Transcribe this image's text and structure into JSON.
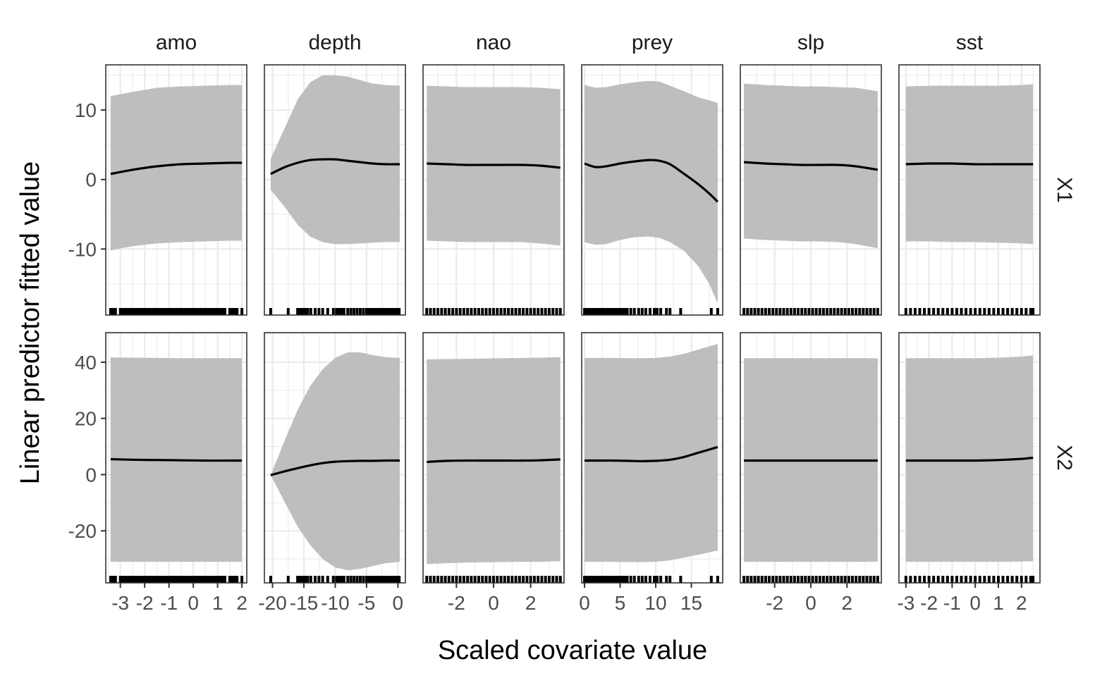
{
  "chart_data": {
    "type": "line",
    "xlabel": "Scaled covariate value",
    "ylabel": "Linear predictor fitted value",
    "columns": [
      "amo",
      "depth",
      "nao",
      "prey",
      "slp",
      "sst"
    ],
    "rows": [
      "X1",
      "X2"
    ],
    "colors": {
      "ribbon": "#bebebe",
      "line": "#000000",
      "grid": "#ebebeb",
      "border": "#333333",
      "text": "#4d4d4d"
    },
    "x_axes": {
      "amo": {
        "xlim": [
          -3.6,
          2.2
        ],
        "ticks": [
          -3,
          -2,
          -1,
          0,
          1,
          2
        ],
        "tick_labels": [
          "-3",
          "-2",
          "-1",
          "0",
          "1",
          "2"
        ]
      },
      "depth": {
        "xlim": [
          -21.3,
          1.2
        ],
        "ticks": [
          -20,
          -15,
          -10,
          -5,
          0
        ],
        "tick_labels": [
          "-20",
          "-15",
          "-10",
          "-5",
          "0"
        ]
      },
      "nao": {
        "xlim": [
          -3.8,
          3.8
        ],
        "ticks": [
          -2,
          0,
          2
        ],
        "tick_labels": [
          "-2",
          "0",
          "2"
        ]
      },
      "prey": {
        "xlim": [
          -0.4,
          19.4
        ],
        "ticks": [
          0,
          5,
          10,
          15
        ],
        "tick_labels": [
          "0",
          "5",
          "10",
          "15"
        ]
      },
      "slp": {
        "xlim": [
          -3.9,
          3.9
        ],
        "ticks": [
          -2,
          0,
          2
        ],
        "tick_labels": [
          "-2",
          "0",
          "2"
        ]
      },
      "sst": {
        "xlim": [
          -3.3,
          2.8
        ],
        "ticks": [
          -3,
          -2,
          -1,
          0,
          1,
          2
        ],
        "tick_labels": [
          "-3",
          "-2",
          "-1",
          "0",
          "1",
          "2"
        ]
      }
    },
    "y_axes": {
      "X1": {
        "ylim": [
          -19.5,
          16.5
        ],
        "ticks": [
          -10,
          0,
          10
        ],
        "tick_labels": [
          "-10",
          "0",
          "10"
        ]
      },
      "X2": {
        "ylim": [
          -38.5,
          50.5
        ],
        "ticks": [
          -20,
          0,
          20,
          40
        ],
        "tick_labels": [
          "-20",
          "0",
          "20",
          "40"
        ]
      }
    },
    "panels": [
      {
        "row": "X1",
        "col": "amo",
        "x": [
          -3.4,
          -2.5,
          -1.5,
          -0.5,
          0.5,
          1.5,
          2.0
        ],
        "fit": [
          0.8,
          1.4,
          1.9,
          2.2,
          2.3,
          2.4,
          2.4
        ],
        "lower": [
          -10.2,
          -9.6,
          -9.2,
          -9.0,
          -8.9,
          -8.8,
          -8.8
        ],
        "upper": [
          12.0,
          12.6,
          13.2,
          13.4,
          13.5,
          13.6,
          13.6
        ],
        "rug": [
          -3.4,
          -3.3,
          -3.2,
          -3.0,
          -2.9,
          -2.8,
          -2.7,
          -2.6,
          -2.5,
          -2.4,
          -2.3,
          -2.2,
          -2.1,
          -2.0,
          -1.9,
          -1.8,
          -1.7,
          -1.6,
          -1.5,
          -1.4,
          -1.3,
          -1.2,
          -1.1,
          -1.0,
          -0.9,
          -0.8,
          -0.7,
          -0.6,
          -0.5,
          -0.4,
          -0.3,
          -0.2,
          -0.1,
          0.0,
          0.1,
          0.2,
          0.3,
          0.4,
          0.5,
          0.6,
          0.7,
          0.8,
          0.9,
          1.0,
          1.1,
          1.2,
          1.3,
          1.5,
          1.6,
          1.7,
          1.8,
          2.0
        ]
      },
      {
        "row": "X1",
        "col": "depth",
        "x": [
          -20.3,
          -18,
          -16,
          -14,
          -12,
          -10,
          -8,
          -6,
          -4,
          -2,
          0.3
        ],
        "fit": [
          0.8,
          1.8,
          2.4,
          2.8,
          2.9,
          2.9,
          2.7,
          2.5,
          2.3,
          2.2,
          2.2
        ],
        "lower": [
          -1.5,
          -4.0,
          -6.5,
          -8.2,
          -9.0,
          -9.3,
          -9.3,
          -9.2,
          -9.1,
          -9.0,
          -9.0
        ],
        "upper": [
          3.0,
          7.5,
          11.5,
          14.0,
          15.0,
          15.0,
          14.8,
          14.3,
          13.8,
          13.6,
          13.5
        ],
        "rug": [
          -20.3,
          -17.5,
          -16.0,
          -15.6,
          -15.2,
          -14.8,
          -14.4,
          -13.9,
          -13.2,
          -12.6,
          -12.0,
          -11.2,
          -10.3,
          -9.8,
          -9.4,
          -9.0,
          -8.6,
          -8.0,
          -7.5,
          -7.0,
          -6.5,
          -6.0,
          -5.5,
          -5.0,
          -4.6,
          -4.2,
          -3.8,
          -3.4,
          -3.0,
          -2.6,
          -2.2,
          -1.8,
          -1.4,
          -1.0,
          -0.6,
          -0.2,
          0.2
        ]
      },
      {
        "row": "X1",
        "col": "nao",
        "x": [
          -3.6,
          -2.5,
          -1.5,
          -0.5,
          0.5,
          1.5,
          2.5,
          3.6
        ],
        "fit": [
          2.3,
          2.2,
          2.1,
          2.1,
          2.1,
          2.1,
          2.0,
          1.7
        ],
        "lower": [
          -8.8,
          -8.9,
          -9.0,
          -9.0,
          -9.0,
          -9.0,
          -9.2,
          -9.5
        ],
        "upper": [
          13.5,
          13.4,
          13.3,
          13.3,
          13.3,
          13.3,
          13.2,
          13.0
        ],
        "rug": [
          -3.6,
          -3.4,
          -3.2,
          -3.0,
          -2.8,
          -2.6,
          -2.4,
          -2.2,
          -2.0,
          -1.8,
          -1.6,
          -1.4,
          -1.2,
          -1.0,
          -0.8,
          -0.6,
          -0.4,
          -0.2,
          0.0,
          0.2,
          0.4,
          0.6,
          0.8,
          1.0,
          1.2,
          1.4,
          1.6,
          1.8,
          2.0,
          2.2,
          2.4,
          2.6,
          2.8,
          3.0,
          3.2,
          3.4,
          3.6
        ]
      },
      {
        "row": "X1",
        "col": "prey",
        "x": [
          0,
          1.5,
          3,
          5,
          7,
          9,
          10.5,
          12,
          14,
          16,
          17.5,
          18.7
        ],
        "fit": [
          2.3,
          1.8,
          1.9,
          2.3,
          2.6,
          2.8,
          2.7,
          2.2,
          0.8,
          -0.7,
          -2.0,
          -3.2
        ],
        "lower": [
          -9.0,
          -9.4,
          -9.3,
          -8.7,
          -8.3,
          -8.2,
          -8.4,
          -9.0,
          -10.3,
          -12.5,
          -15.0,
          -17.8
        ],
        "upper": [
          13.6,
          13.2,
          13.3,
          13.7,
          14.0,
          14.2,
          14.1,
          13.5,
          12.7,
          11.8,
          11.4,
          11.0
        ],
        "rug": [
          0.0,
          0.3,
          0.6,
          0.9,
          1.2,
          1.5,
          1.8,
          2.1,
          2.4,
          2.7,
          3.0,
          3.3,
          3.6,
          3.9,
          4.2,
          4.5,
          4.8,
          5.1,
          5.4,
          5.7,
          6.0,
          6.5,
          7.0,
          7.6,
          8.1,
          8.6,
          9.2,
          9.8,
          10.2,
          10.7,
          11.5,
          12.0,
          13.5,
          17.8,
          18.7
        ]
      },
      {
        "row": "X1",
        "col": "slp",
        "x": [
          -3.7,
          -2.5,
          -1.5,
          -0.5,
          0.5,
          1.5,
          2.5,
          3.7
        ],
        "fit": [
          2.5,
          2.3,
          2.2,
          2.1,
          2.1,
          2.1,
          1.9,
          1.4
        ],
        "lower": [
          -8.5,
          -8.7,
          -8.8,
          -8.9,
          -8.9,
          -9.0,
          -9.3,
          -9.9
        ],
        "upper": [
          13.8,
          13.6,
          13.5,
          13.4,
          13.4,
          13.3,
          13.2,
          12.7
        ],
        "rug": [
          -3.7,
          -3.5,
          -3.3,
          -3.1,
          -2.9,
          -2.7,
          -2.5,
          -2.3,
          -2.1,
          -1.9,
          -1.7,
          -1.5,
          -1.3,
          -1.1,
          -0.9,
          -0.7,
          -0.5,
          -0.3,
          -0.1,
          0.1,
          0.3,
          0.5,
          0.7,
          0.9,
          1.1,
          1.3,
          1.5,
          1.7,
          1.9,
          2.1,
          2.3,
          2.5,
          2.7,
          2.9,
          3.1,
          3.3,
          3.5,
          3.7
        ]
      },
      {
        "row": "X1",
        "col": "sst",
        "x": [
          -3.0,
          -2.0,
          -1.0,
          0.0,
          1.0,
          2.0,
          2.5
        ],
        "fit": [
          2.2,
          2.3,
          2.3,
          2.2,
          2.2,
          2.2,
          2.2
        ],
        "lower": [
          -8.9,
          -8.9,
          -9.0,
          -9.0,
          -9.1,
          -9.2,
          -9.3
        ],
        "upper": [
          13.4,
          13.5,
          13.5,
          13.5,
          13.5,
          13.6,
          13.7
        ],
        "rug": [
          -3.0,
          -2.8,
          -2.6,
          -2.4,
          -2.2,
          -2.0,
          -1.8,
          -1.6,
          -1.4,
          -1.2,
          -1.0,
          -0.8,
          -0.6,
          -0.4,
          -0.2,
          0.0,
          0.2,
          0.4,
          0.6,
          0.8,
          1.0,
          1.2,
          1.4,
          1.6,
          1.8,
          2.0,
          2.2,
          2.4,
          2.5
        ]
      },
      {
        "row": "X2",
        "col": "amo",
        "x": [
          -3.4,
          -2.5,
          -1.5,
          -0.5,
          0.5,
          1.5,
          2.0
        ],
        "fit": [
          5.5,
          5.3,
          5.2,
          5.1,
          5.0,
          5.0,
          5.0
        ],
        "lower": [
          -31.0,
          -31.0,
          -31.0,
          -31.0,
          -31.0,
          -31.0,
          -31.0
        ],
        "upper": [
          41.7,
          41.6,
          41.5,
          41.4,
          41.4,
          41.4,
          41.4
        ],
        "rug": [
          -3.4,
          -3.3,
          -3.2,
          -3.0,
          -2.9,
          -2.8,
          -2.7,
          -2.6,
          -2.5,
          -2.4,
          -2.3,
          -2.2,
          -2.1,
          -2.0,
          -1.9,
          -1.8,
          -1.7,
          -1.6,
          -1.5,
          -1.4,
          -1.3,
          -1.2,
          -1.1,
          -1.0,
          -0.9,
          -0.8,
          -0.7,
          -0.6,
          -0.5,
          -0.4,
          -0.3,
          -0.2,
          -0.1,
          0.0,
          0.1,
          0.2,
          0.3,
          0.4,
          0.5,
          0.6,
          0.7,
          0.8,
          0.9,
          1.0,
          1.1,
          1.2,
          1.3,
          1.5,
          1.6,
          1.7,
          1.8,
          2.0
        ]
      },
      {
        "row": "X2",
        "col": "depth",
        "x": [
          -20.3,
          -18,
          -16,
          -14,
          -12,
          -10,
          -8,
          -6,
          -4,
          -2,
          0.3
        ],
        "fit": [
          -0.2,
          1.2,
          2.3,
          3.3,
          4.1,
          4.6,
          4.8,
          4.9,
          4.9,
          5.0,
          5.0
        ],
        "lower": [
          -0.2,
          -10.0,
          -18.5,
          -25.0,
          -30.0,
          -33.0,
          -34.0,
          -33.5,
          -32.5,
          -31.5,
          -31.0
        ],
        "upper": [
          -0.2,
          12.5,
          23.0,
          31.5,
          37.5,
          41.5,
          43.5,
          43.5,
          42.5,
          41.8,
          41.5
        ],
        "rug": [
          -20.3,
          -17.5,
          -16.0,
          -15.6,
          -15.2,
          -14.8,
          -14.4,
          -13.9,
          -13.2,
          -12.6,
          -12.0,
          -11.2,
          -10.3,
          -9.8,
          -9.4,
          -9.0,
          -8.6,
          -8.0,
          -7.5,
          -7.0,
          -6.5,
          -6.0,
          -5.5,
          -5.0,
          -4.6,
          -4.2,
          -3.8,
          -3.4,
          -3.0,
          -2.6,
          -2.2,
          -1.8,
          -1.4,
          -1.0,
          -0.6,
          -0.2,
          0.2
        ]
      },
      {
        "row": "X2",
        "col": "nao",
        "x": [
          -3.6,
          -2.5,
          -1.5,
          -0.5,
          0.5,
          1.5,
          2.5,
          3.6
        ],
        "fit": [
          4.5,
          4.9,
          5.0,
          5.0,
          5.0,
          5.0,
          5.1,
          5.4
        ],
        "lower": [
          -31.8,
          -31.5,
          -31.3,
          -31.2,
          -31.1,
          -31.0,
          -31.0,
          -30.8
        ],
        "upper": [
          41.0,
          41.1,
          41.2,
          41.3,
          41.4,
          41.5,
          41.6,
          41.8
        ],
        "rug": [
          -3.6,
          -3.4,
          -3.2,
          -3.0,
          -2.8,
          -2.6,
          -2.4,
          -2.2,
          -2.0,
          -1.8,
          -1.6,
          -1.4,
          -1.2,
          -1.0,
          -0.8,
          -0.6,
          -0.4,
          -0.2,
          0.0,
          0.2,
          0.4,
          0.6,
          0.8,
          1.0,
          1.2,
          1.4,
          1.6,
          1.8,
          2.0,
          2.2,
          2.4,
          2.6,
          2.8,
          3.0,
          3.2,
          3.4,
          3.6
        ]
      },
      {
        "row": "X2",
        "col": "prey",
        "x": [
          0,
          2,
          4,
          6,
          8,
          10,
          12,
          14,
          16,
          18.7
        ],
        "fit": [
          5.0,
          5.0,
          5.0,
          4.9,
          4.8,
          4.9,
          5.3,
          6.3,
          7.8,
          9.8
        ],
        "lower": [
          -31.0,
          -31.0,
          -31.0,
          -31.1,
          -31.1,
          -31.0,
          -30.5,
          -29.5,
          -28.5,
          -27.0
        ],
        "upper": [
          41.5,
          41.5,
          41.5,
          41.4,
          41.4,
          41.5,
          42.0,
          43.0,
          44.5,
          46.5
        ],
        "rug": [
          0.0,
          0.3,
          0.6,
          0.9,
          1.2,
          1.5,
          1.8,
          2.1,
          2.4,
          2.7,
          3.0,
          3.3,
          3.6,
          3.9,
          4.2,
          4.5,
          4.8,
          5.1,
          5.4,
          5.7,
          6.0,
          6.5,
          7.0,
          7.6,
          8.1,
          8.6,
          9.2,
          9.8,
          10.2,
          10.7,
          11.5,
          12.0,
          13.5,
          17.8,
          18.7
        ]
      },
      {
        "row": "X2",
        "col": "slp",
        "x": [
          -3.7,
          -2.5,
          -1.5,
          -0.5,
          0.5,
          1.5,
          2.5,
          3.7
        ],
        "fit": [
          5.0,
          5.0,
          5.0,
          5.0,
          5.0,
          5.0,
          5.0,
          5.0
        ],
        "lower": [
          -31.0,
          -31.0,
          -31.0,
          -31.0,
          -31.0,
          -31.0,
          -31.0,
          -31.0
        ],
        "upper": [
          41.4,
          41.4,
          41.4,
          41.4,
          41.4,
          41.4,
          41.4,
          41.4
        ],
        "rug": [
          -3.7,
          -3.5,
          -3.3,
          -3.1,
          -2.9,
          -2.7,
          -2.5,
          -2.3,
          -2.1,
          -1.9,
          -1.7,
          -1.5,
          -1.3,
          -1.1,
          -0.9,
          -0.7,
          -0.5,
          -0.3,
          -0.1,
          0.1,
          0.3,
          0.5,
          0.7,
          0.9,
          1.1,
          1.3,
          1.5,
          1.7,
          1.9,
          2.1,
          2.3,
          2.5,
          2.7,
          2.9,
          3.1,
          3.3,
          3.5,
          3.7
        ]
      },
      {
        "row": "X2",
        "col": "sst",
        "x": [
          -3.0,
          -2.0,
          -1.0,
          0.0,
          1.0,
          2.0,
          2.5
        ],
        "fit": [
          5.0,
          5.0,
          5.0,
          5.0,
          5.2,
          5.6,
          6.0
        ],
        "lower": [
          -31.0,
          -31.0,
          -31.0,
          -31.0,
          -31.0,
          -30.9,
          -30.8
        ],
        "upper": [
          41.4,
          41.4,
          41.4,
          41.4,
          41.6,
          42.0,
          42.4
        ],
        "rug": [
          -3.0,
          -2.8,
          -2.6,
          -2.4,
          -2.2,
          -2.0,
          -1.8,
          -1.6,
          -1.4,
          -1.2,
          -1.0,
          -0.8,
          -0.6,
          -0.4,
          -0.2,
          0.0,
          0.2,
          0.4,
          0.6,
          0.8,
          1.0,
          1.2,
          1.4,
          1.6,
          1.8,
          2.0,
          2.2,
          2.4,
          2.5
        ]
      }
    ]
  }
}
